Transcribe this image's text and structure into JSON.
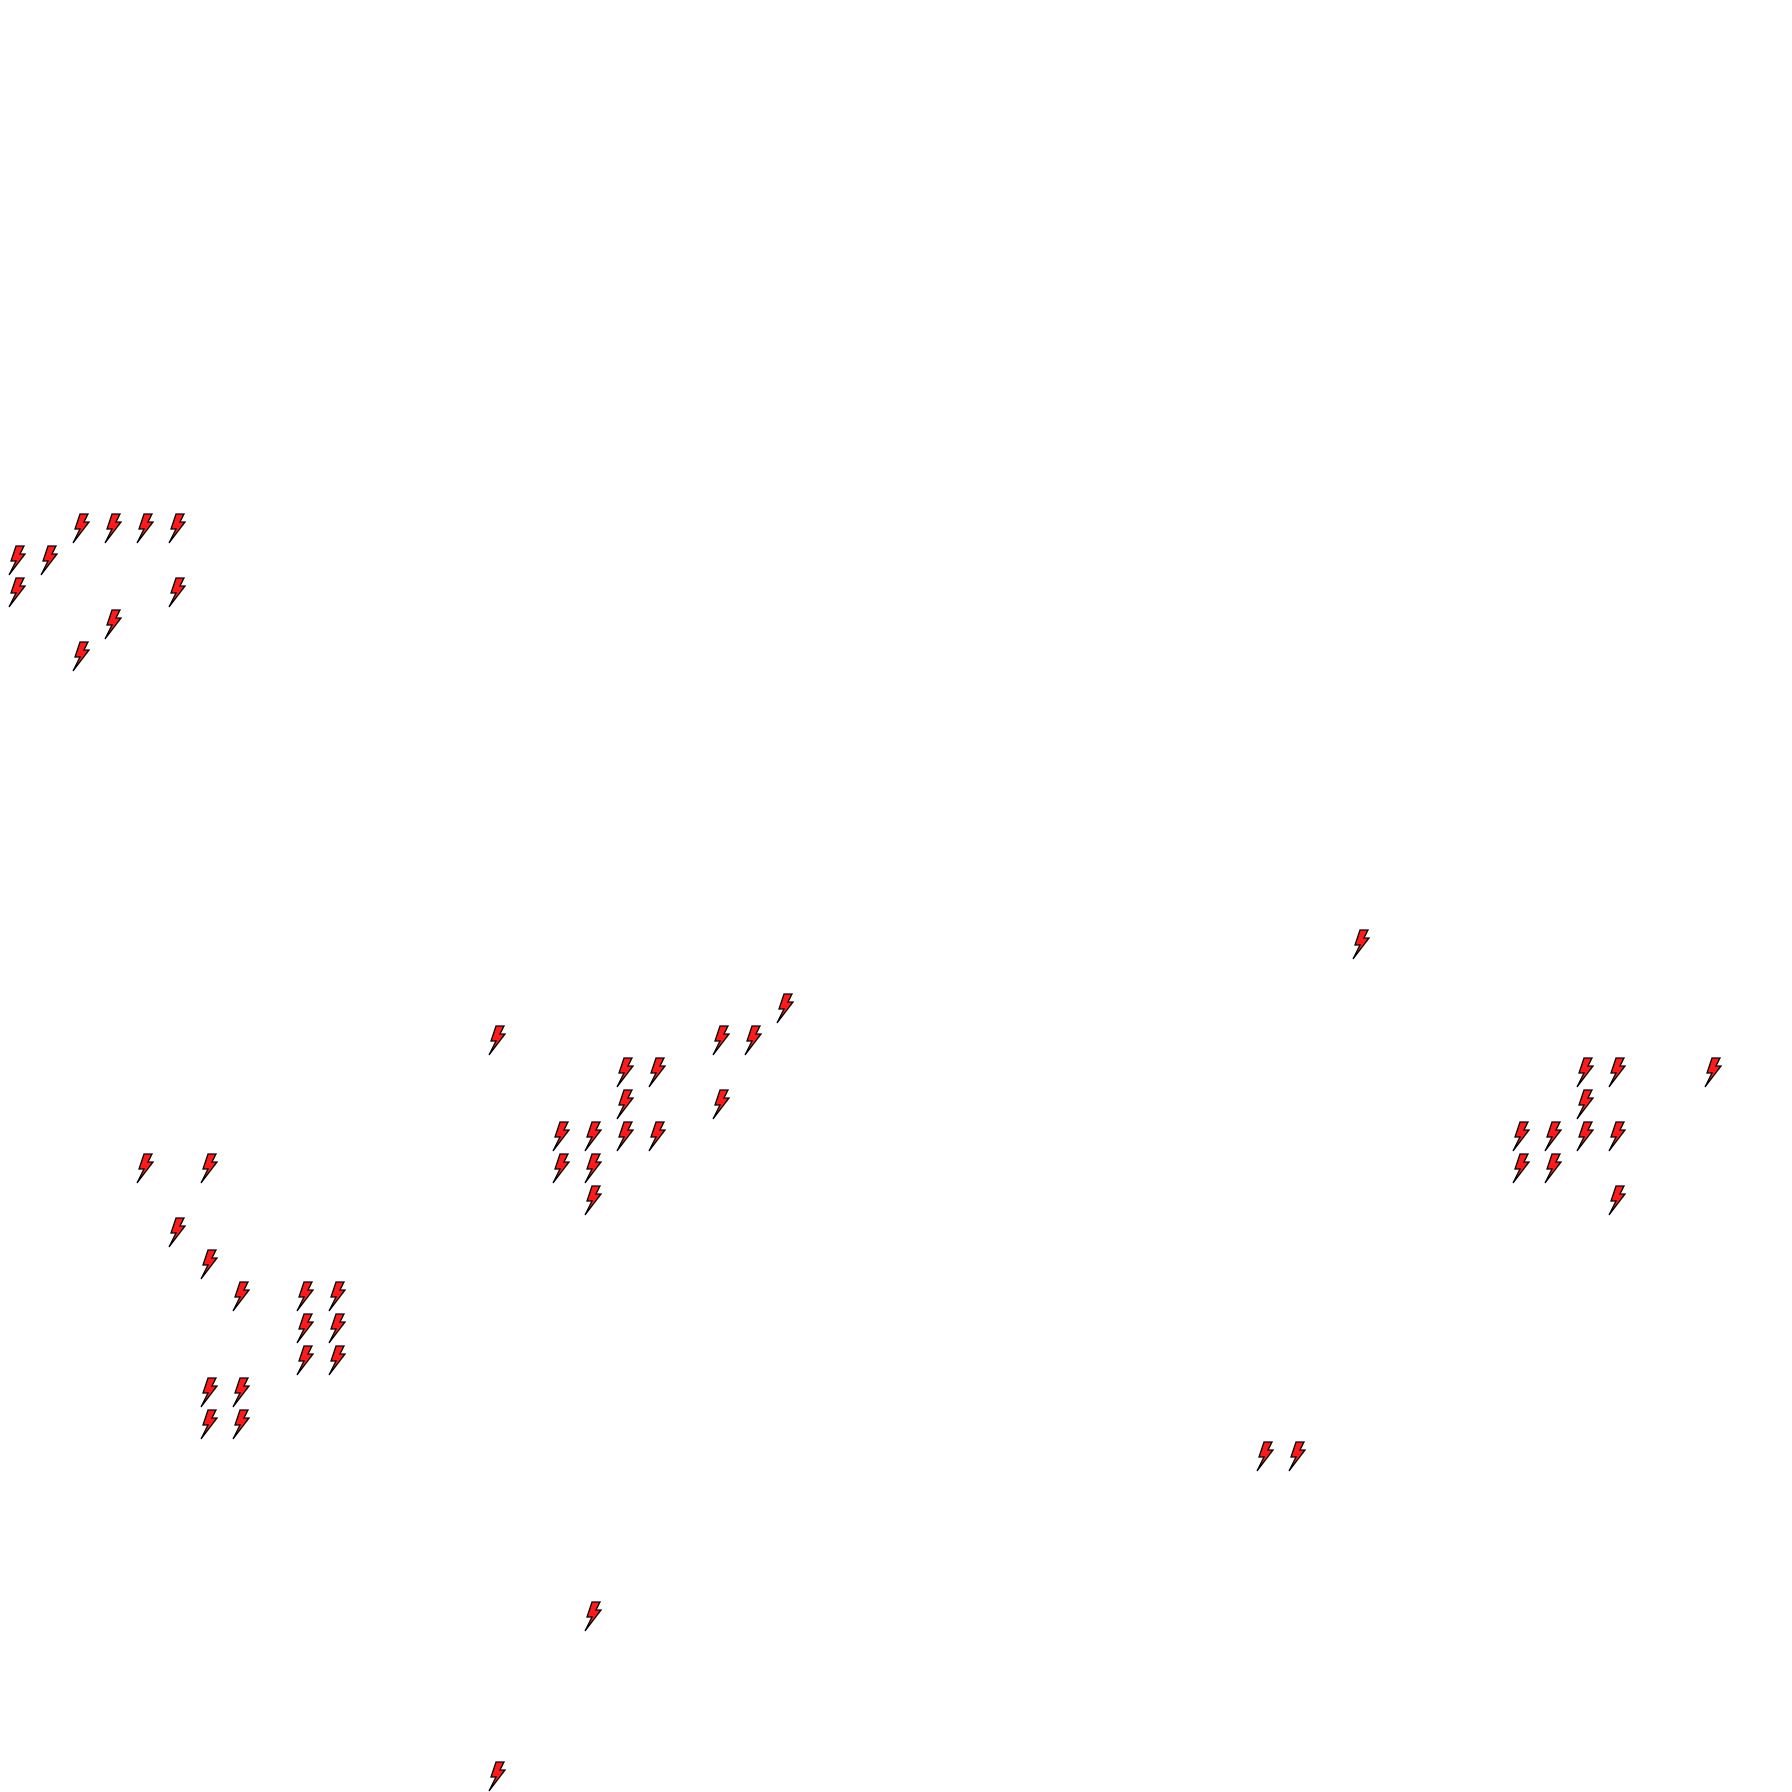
{
  "sprite": {
    "icon": "lightning-bolt-icon",
    "fill": "#ff1a1a",
    "stroke": "#000000"
  }
}
